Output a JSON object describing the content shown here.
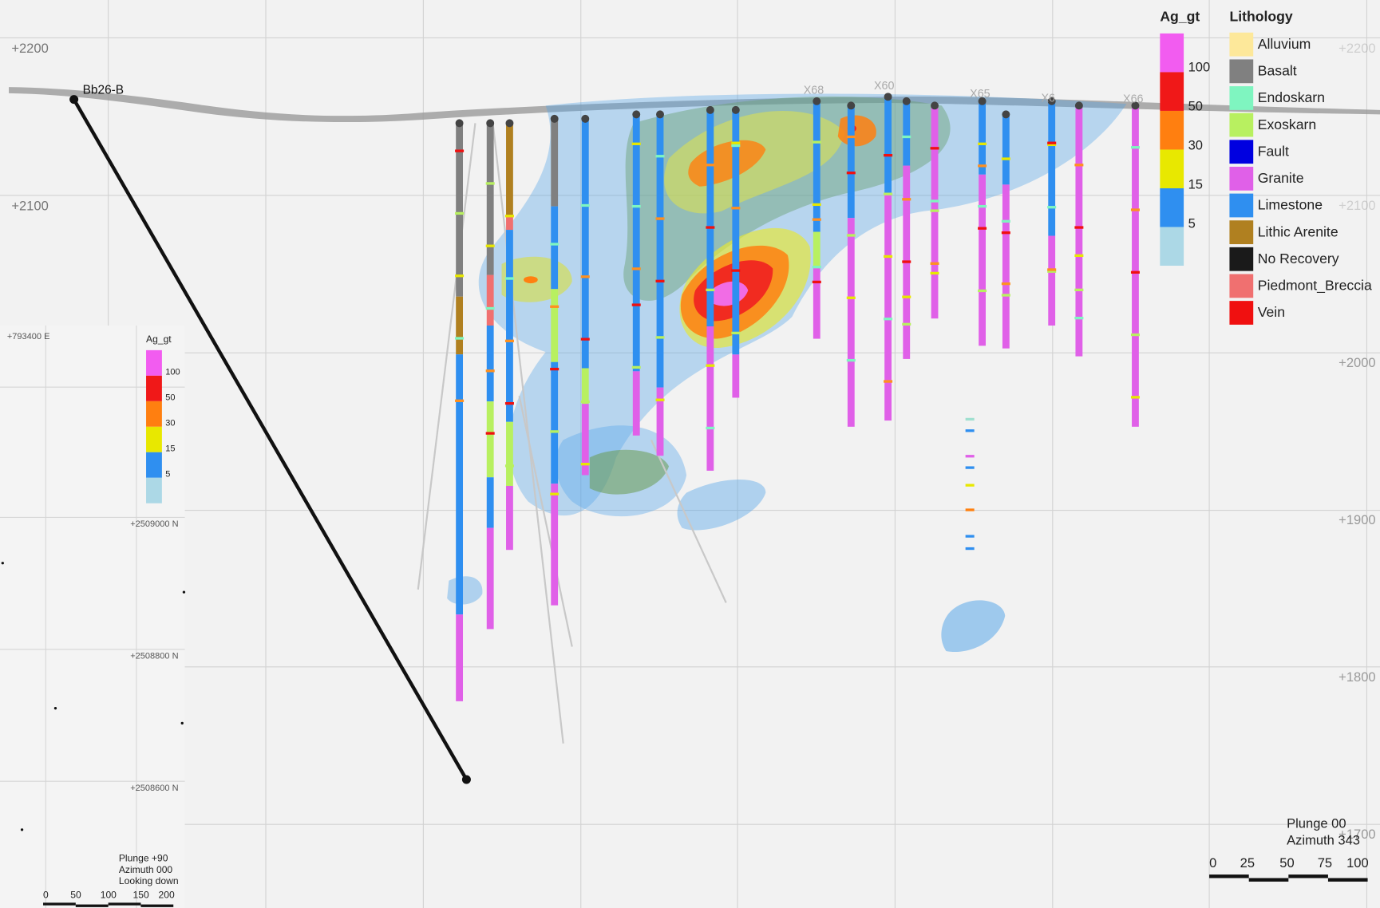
{
  "section": {
    "elevations_left": [
      "+2200",
      "+2100"
    ],
    "elevations_right": [
      "+2200",
      "+2100",
      "+2000",
      "+1900",
      "+1800",
      "+1700"
    ],
    "hole_label": "Bb26-B",
    "hole_ids": [
      "X68",
      "X60",
      "X65",
      "X6",
      "X66"
    ],
    "view": [
      "Plunge 00",
      "Azimuth 343"
    ],
    "scale": [
      "0",
      "25",
      "50",
      "75",
      "100"
    ]
  },
  "grade_legend": {
    "title": "Ag_gt",
    "labels": [
      "100",
      "50",
      "30",
      "15",
      "5"
    ],
    "colors": [
      "#f25cf0",
      "#f01818",
      "#ff7f10",
      "#e8e800",
      "#2f8ff0",
      "#acd8e6"
    ]
  },
  "lithology_legend": {
    "title": "Lithology",
    "items": [
      {
        "label": "Alluvium",
        "color": "#fde89a"
      },
      {
        "label": "Basalt",
        "color": "#808080"
      },
      {
        "label": "Endoskarn",
        "color": "#7ff5c0"
      },
      {
        "label": "Exoskarn",
        "color": "#b8f060"
      },
      {
        "label": "Fault",
        "color": "#0000e0"
      },
      {
        "label": "Granite",
        "color": "#e060e8"
      },
      {
        "label": "Limestone",
        "color": "#2f8ff0"
      },
      {
        "label": "Lithic Arenite",
        "color": "#b08020"
      },
      {
        "label": "No Recovery",
        "color": "#1a1a1a"
      },
      {
        "label": "Piedmont_Breccia",
        "color": "#f07070"
      },
      {
        "label": "Vein",
        "color": "#f01010"
      }
    ]
  },
  "plan_inset": {
    "easting": "+793400 E",
    "northings": [
      "+2509000 N",
      "+2508800 N",
      "+2508600 N"
    ],
    "legend_title": "Ag_gt",
    "legend_labels": [
      "100",
      "50",
      "30",
      "15",
      "5"
    ],
    "view": [
      "Plunge +90",
      "Azimuth 000",
      "Looking down"
    ],
    "scale": [
      "0",
      "50",
      "100",
      "150",
      "200"
    ]
  }
}
